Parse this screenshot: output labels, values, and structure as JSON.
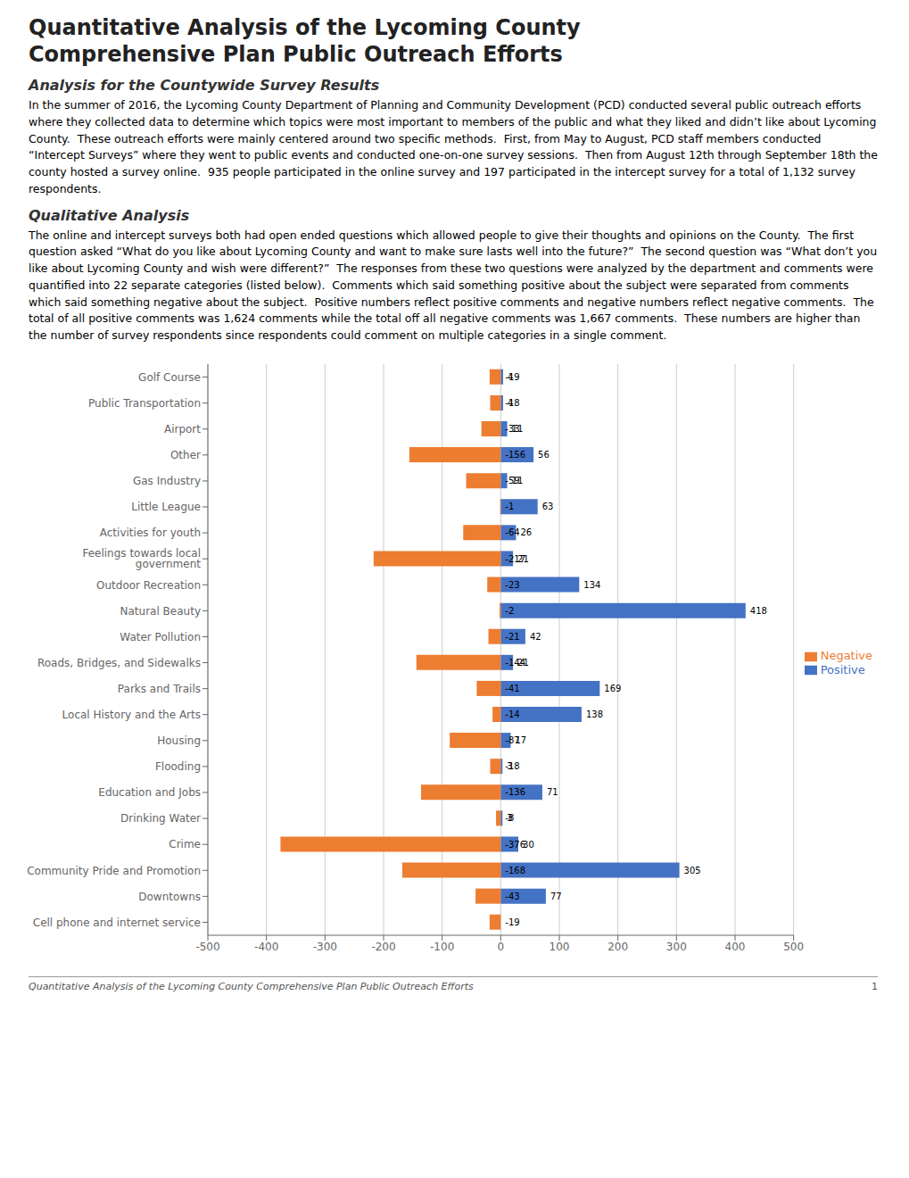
{
  "chart_data": {
    "type": "bar",
    "orientation": "horizontal",
    "title": "Quantitative Analysis of the Lycoming County\nComprehensive Plan Public Outreach Efforts",
    "annotations": [
      "Analysis for the Countywide Survey Results",
      "In the summer of 2016, the Lycoming County Department of Planning and Community Development (PCD) conducted several public outreach efforts where they collected data to determine which topics were most important to members of the public and what they liked and didn’t like about Lycoming County.  These outreach efforts were mainly centered around two specific methods.  First, from May to August, PCD staff members conducted “Intercept Surveys” where they went to public events and conducted one-on-one survey sessions.  Then from August 12th through September 18th the county hosted a survey online.  935 people participated in the online survey and 197 participated in the intercept survey for a total of 1,132 survey respondents.",
      "Qualitative Analysis",
      "The online and intercept surveys both had open ended questions which allowed people to give their thoughts and opinions on the County.  The first question asked “What do you like about Lycoming County and want to make sure lasts well into the future?”  The second question was “What don’t you like about Lycoming County and wish were different?”  The responses from these two questions were analyzed by the department and comments were quantified into 22 separate categories (listed below).  Comments which said something positive about the subject were separated from comments which said something negative about the subject.  Positive numbers reflect positive comments and negative numbers reflect negative comments.  The total of all positive comments was 1,624 comments while the total off all negative comments was 1,667 comments.  These numbers are higher than the number of survey respondents since respondents could comment on multiple categories in a single comment.",
      "Quantitative Analysis of the Lycoming County Comprehensive Plan Public Outreach Efforts",
      "1"
    ],
    "categories": [
      "Golf Course",
      "Public Transportation",
      "Airport",
      "Other",
      "Gas Industry",
      "Little League",
      "Activities for youth",
      "Feelings towards local government",
      "Outdoor Recreation",
      "Natural Beauty",
      "Water Pollution",
      "Roads, Bridges, and Sidewalks",
      "Parks and Trails",
      "Local History and the Arts",
      "Housing",
      "Flooding",
      "Education and Jobs",
      "Drinking Water",
      "Crime",
      "Community Pride and Promotion",
      "Downtowns",
      "Cell phone and internet service"
    ],
    "series": [
      {
        "name": "Positive",
        "color": "#4472C4",
        "values": [
          4,
          4,
          11,
          56,
          11,
          63,
          26,
          21,
          134,
          418,
          42,
          21,
          169,
          138,
          17,
          3,
          71,
          3,
          30,
          305,
          77,
          0
        ]
      },
      {
        "name": "Negative",
        "color": "#ED7D31",
        "values": [
          -19,
          -18,
          -33,
          -156,
          -59,
          -1,
          -64,
          -217,
          -23,
          -2,
          -21,
          -144,
          -41,
          -14,
          -87,
          -18,
          -136,
          -8,
          -376,
          -168,
          -43,
          -19
        ]
      }
    ],
    "xlim": [
      -500,
      500
    ],
    "xticks": [
      -500,
      -400,
      -300,
      -200,
      -100,
      0,
      100,
      200,
      300,
      400,
      500
    ],
    "grid": true,
    "legend": "right",
    "data_labels": true
  }
}
